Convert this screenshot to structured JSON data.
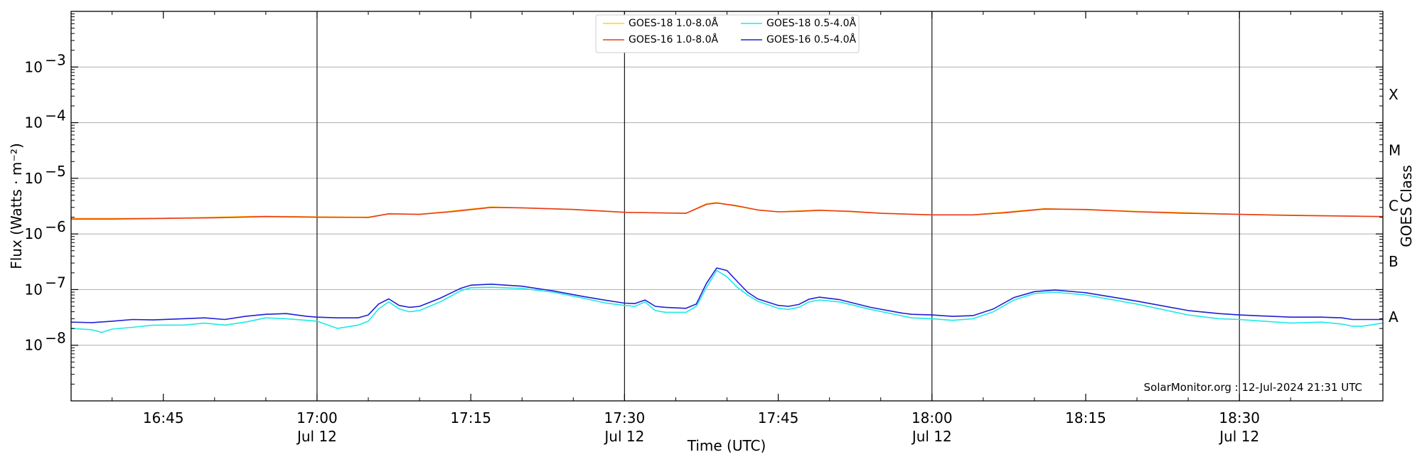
{
  "chart_data": {
    "type": "line",
    "title": "",
    "xlabel": "Time (UTC)",
    "ylabel": "Flux (Watts · m⁻²)",
    "y2label": "GOES Class",
    "yscale": "log",
    "ylim": [
      1e-09,
      0.01
    ],
    "xlim": [
      "16:36",
      "18:44"
    ],
    "grid": "horizontal",
    "legend_position": "top-center",
    "credit": "SolarMonitor.org : 12-Jul-2024 21:31 UTC",
    "x_ticks": [
      {
        "time": "16:45",
        "label": "16:45",
        "sublabel": ""
      },
      {
        "time": "17:00",
        "label": "17:00",
        "sublabel": "Jul 12"
      },
      {
        "time": "17:15",
        "label": "17:15",
        "sublabel": ""
      },
      {
        "time": "17:30",
        "label": "17:30",
        "sublabel": "Jul 12"
      },
      {
        "time": "17:45",
        "label": "17:45",
        "sublabel": ""
      },
      {
        "time": "18:00",
        "label": "18:00",
        "sublabel": "Jul 12"
      },
      {
        "time": "18:15",
        "label": "18:15",
        "sublabel": ""
      },
      {
        "time": "18:30",
        "label": "18:30",
        "sublabel": "Jul 12"
      }
    ],
    "vlines": [
      "17:00",
      "17:30",
      "18:00",
      "18:30"
    ],
    "y_ticks": [
      {
        "value": 1e-08,
        "base": "10",
        "exp": "−8"
      },
      {
        "value": 1e-07,
        "base": "10",
        "exp": "−7"
      },
      {
        "value": 1e-06,
        "base": "10",
        "exp": "−6"
      },
      {
        "value": 1e-05,
        "base": "10",
        "exp": "−5"
      },
      {
        "value": 0.0001,
        "base": "10",
        "exp": "−4"
      },
      {
        "value": 0.001,
        "base": "10",
        "exp": "−3"
      }
    ],
    "goes_classes": [
      {
        "label": "A",
        "value": 3.2e-08
      },
      {
        "label": "B",
        "value": 3.2e-07
      },
      {
        "label": "C",
        "value": 3.2e-06
      },
      {
        "label": "M",
        "value": 3.2e-05
      },
      {
        "label": "X",
        "value": 0.00032
      }
    ],
    "series": [
      {
        "name": "GOES-18 1.0-8.0Å",
        "color": "#ffd700",
        "points": [
          [
            "16:36",
            1.9e-06
          ],
          [
            "16:45",
            1.92e-06
          ],
          [
            "16:55",
            2.08e-06
          ],
          [
            "17:00",
            2.02e-06
          ],
          [
            "17:05",
            2e-06
          ],
          [
            "17:07",
            2.3e-06
          ],
          [
            "17:10",
            2.25e-06
          ],
          [
            "17:17",
            3.05e-06
          ],
          [
            "17:25",
            2.75e-06
          ],
          [
            "17:30",
            2.45e-06
          ],
          [
            "17:36",
            2.35e-06
          ],
          [
            "17:38",
            3.5e-06
          ],
          [
            "17:39",
            3.65e-06
          ],
          [
            "17:43",
            2.7e-06
          ],
          [
            "17:45",
            2.5e-06
          ],
          [
            "17:49",
            2.7e-06
          ],
          [
            "17:55",
            2.35e-06
          ],
          [
            "18:00",
            2.2e-06
          ],
          [
            "18:04",
            2.2e-06
          ],
          [
            "18:11",
            2.85e-06
          ],
          [
            "18:20",
            2.55e-06
          ],
          [
            "18:30",
            2.25e-06
          ],
          [
            "18:44",
            2.05e-06
          ]
        ]
      },
      {
        "name": "GOES-16 1.0-8.0Å",
        "color": "#e8381c",
        "points": [
          [
            "16:36",
            1.85e-06
          ],
          [
            "16:40",
            1.85e-06
          ],
          [
            "16:45",
            1.9e-06
          ],
          [
            "16:50",
            1.95e-06
          ],
          [
            "16:55",
            2.05e-06
          ],
          [
            "17:00",
            2e-06
          ],
          [
            "17:05",
            1.98e-06
          ],
          [
            "17:07",
            2.3e-06
          ],
          [
            "17:10",
            2.25e-06
          ],
          [
            "17:13",
            2.5e-06
          ],
          [
            "17:17",
            3e-06
          ],
          [
            "17:20",
            2.95e-06
          ],
          [
            "17:25",
            2.75e-06
          ],
          [
            "17:30",
            2.45e-06
          ],
          [
            "17:33",
            2.4e-06
          ],
          [
            "17:36",
            2.35e-06
          ],
          [
            "17:38",
            3.4e-06
          ],
          [
            "17:39",
            3.6e-06
          ],
          [
            "17:41",
            3.2e-06
          ],
          [
            "17:43",
            2.7e-06
          ],
          [
            "17:45",
            2.5e-06
          ],
          [
            "17:47",
            2.55e-06
          ],
          [
            "17:49",
            2.65e-06
          ],
          [
            "17:52",
            2.55e-06
          ],
          [
            "17:55",
            2.35e-06
          ],
          [
            "18:00",
            2.2e-06
          ],
          [
            "18:04",
            2.2e-06
          ],
          [
            "18:07",
            2.4e-06
          ],
          [
            "18:11",
            2.8e-06
          ],
          [
            "18:15",
            2.75e-06
          ],
          [
            "18:20",
            2.5e-06
          ],
          [
            "18:25",
            2.35e-06
          ],
          [
            "18:30",
            2.25e-06
          ],
          [
            "18:35",
            2.15e-06
          ],
          [
            "18:40",
            2.1e-06
          ],
          [
            "18:44",
            2.05e-06
          ]
        ]
      },
      {
        "name": "GOES-18 0.5-4.0Å",
        "color": "#1de9e9",
        "points": [
          [
            "16:36",
            2e-08
          ],
          [
            "16:38",
            1.9e-08
          ],
          [
            "16:39",
            1.7e-08
          ],
          [
            "16:40",
            1.95e-08
          ],
          [
            "16:42",
            2.1e-08
          ],
          [
            "16:44",
            2.3e-08
          ],
          [
            "16:47",
            2.3e-08
          ],
          [
            "16:49",
            2.5e-08
          ],
          [
            "16:51",
            2.3e-08
          ],
          [
            "16:53",
            2.6e-08
          ],
          [
            "16:55",
            3.1e-08
          ],
          [
            "16:57",
            3e-08
          ],
          [
            "16:59",
            2.8e-08
          ],
          [
            "17:00",
            2.7e-08
          ],
          [
            "17:02",
            2e-08
          ],
          [
            "17:04",
            2.3e-08
          ],
          [
            "17:05",
            2.7e-08
          ],
          [
            "17:06",
            4.5e-08
          ],
          [
            "17:07",
            6e-08
          ],
          [
            "17:08",
            4.5e-08
          ],
          [
            "17:09",
            4e-08
          ],
          [
            "17:10",
            4.2e-08
          ],
          [
            "17:12",
            6e-08
          ],
          [
            "17:14",
            9.5e-08
          ],
          [
            "17:15",
            1.08e-07
          ],
          [
            "17:17",
            1.1e-07
          ],
          [
            "17:20",
            1.05e-07
          ],
          [
            "17:23",
            9e-08
          ],
          [
            "17:26",
            7e-08
          ],
          [
            "17:28",
            5.8e-08
          ],
          [
            "17:30",
            5.2e-08
          ],
          [
            "17:31",
            5e-08
          ],
          [
            "17:32",
            6e-08
          ],
          [
            "17:33",
            4.2e-08
          ],
          [
            "17:34",
            3.9e-08
          ],
          [
            "17:36",
            3.9e-08
          ],
          [
            "17:37",
            5e-08
          ],
          [
            "17:38",
            1.1e-07
          ],
          [
            "17:39",
            2.2e-07
          ],
          [
            "17:40",
            1.7e-07
          ],
          [
            "17:41",
            1.1e-07
          ],
          [
            "17:42",
            8e-08
          ],
          [
            "17:43",
            6.2e-08
          ],
          [
            "17:45",
            4.6e-08
          ],
          [
            "17:46",
            4.4e-08
          ],
          [
            "17:47",
            4.8e-08
          ],
          [
            "17:48",
            6e-08
          ],
          [
            "17:49",
            6.5e-08
          ],
          [
            "17:51",
            6e-08
          ],
          [
            "17:54",
            4.4e-08
          ],
          [
            "17:57",
            3.4e-08
          ],
          [
            "17:58",
            3.1e-08
          ],
          [
            "18:00",
            3e-08
          ],
          [
            "18:02",
            2.8e-08
          ],
          [
            "18:04",
            3e-08
          ],
          [
            "18:06",
            4e-08
          ],
          [
            "18:08",
            6.5e-08
          ],
          [
            "18:10",
            8.5e-08
          ],
          [
            "18:12",
            9e-08
          ],
          [
            "18:15",
            8e-08
          ],
          [
            "18:20",
            5.5e-08
          ],
          [
            "18:25",
            3.5e-08
          ],
          [
            "18:28",
            3e-08
          ],
          [
            "18:30",
            2.9e-08
          ],
          [
            "18:35",
            2.5e-08
          ],
          [
            "18:38",
            2.6e-08
          ],
          [
            "18:40",
            2.4e-08
          ],
          [
            "18:41",
            2.2e-08
          ],
          [
            "18:42",
            2.2e-08
          ],
          [
            "18:44",
            2.5e-08
          ]
        ]
      },
      {
        "name": "GOES-16 0.5-4.0Å",
        "color": "#1f1fd6",
        "points": [
          [
            "16:36",
            2.6e-08
          ],
          [
            "16:38",
            2.55e-08
          ],
          [
            "16:40",
            2.7e-08
          ],
          [
            "16:42",
            2.9e-08
          ],
          [
            "16:44",
            2.85e-08
          ],
          [
            "16:47",
            3e-08
          ],
          [
            "16:49",
            3.1e-08
          ],
          [
            "16:51",
            2.9e-08
          ],
          [
            "16:53",
            3.3e-08
          ],
          [
            "16:55",
            3.6e-08
          ],
          [
            "16:57",
            3.7e-08
          ],
          [
            "16:59",
            3.3e-08
          ],
          [
            "17:00",
            3.2e-08
          ],
          [
            "17:02",
            3.1e-08
          ],
          [
            "17:04",
            3.1e-08
          ],
          [
            "17:05",
            3.5e-08
          ],
          [
            "17:06",
            5.5e-08
          ],
          [
            "17:07",
            6.8e-08
          ],
          [
            "17:08",
            5.2e-08
          ],
          [
            "17:09",
            4.8e-08
          ],
          [
            "17:10",
            5e-08
          ],
          [
            "17:12",
            7e-08
          ],
          [
            "17:14",
            1.05e-07
          ],
          [
            "17:15",
            1.2e-07
          ],
          [
            "17:17",
            1.25e-07
          ],
          [
            "17:20",
            1.15e-07
          ],
          [
            "17:23",
            9.5e-08
          ],
          [
            "17:26",
            7.5e-08
          ],
          [
            "17:28",
            6.5e-08
          ],
          [
            "17:30",
            5.7e-08
          ],
          [
            "17:31",
            5.6e-08
          ],
          [
            "17:32",
            6.5e-08
          ],
          [
            "17:33",
            5e-08
          ],
          [
            "17:34",
            4.8e-08
          ],
          [
            "17:36",
            4.6e-08
          ],
          [
            "17:37",
            5.5e-08
          ],
          [
            "17:38",
            1.3e-07
          ],
          [
            "17:39",
            2.45e-07
          ],
          [
            "17:40",
            2.2e-07
          ],
          [
            "17:41",
            1.4e-07
          ],
          [
            "17:42",
            9e-08
          ],
          [
            "17:43",
            6.8e-08
          ],
          [
            "17:45",
            5.2e-08
          ],
          [
            "17:46",
            5e-08
          ],
          [
            "17:47",
            5.4e-08
          ],
          [
            "17:48",
            6.7e-08
          ],
          [
            "17:49",
            7.3e-08
          ],
          [
            "17:51",
            6.6e-08
          ],
          [
            "17:54",
            4.8e-08
          ],
          [
            "17:57",
            3.8e-08
          ],
          [
            "17:58",
            3.6e-08
          ],
          [
            "18:00",
            3.5e-08
          ],
          [
            "18:02",
            3.3e-08
          ],
          [
            "18:04",
            3.4e-08
          ],
          [
            "18:06",
            4.5e-08
          ],
          [
            "18:08",
            7.2e-08
          ],
          [
            "18:10",
            9.2e-08
          ],
          [
            "18:12",
            9.8e-08
          ],
          [
            "18:15",
            8.8e-08
          ],
          [
            "18:20",
            6.2e-08
          ],
          [
            "18:25",
            4.2e-08
          ],
          [
            "18:28",
            3.7e-08
          ],
          [
            "18:30",
            3.5e-08
          ],
          [
            "18:35",
            3.2e-08
          ],
          [
            "18:38",
            3.2e-08
          ],
          [
            "18:40",
            3.1e-08
          ],
          [
            "18:41",
            2.9e-08
          ],
          [
            "18:42",
            2.9e-08
          ],
          [
            "18:44",
            2.9e-08
          ]
        ]
      }
    ]
  }
}
